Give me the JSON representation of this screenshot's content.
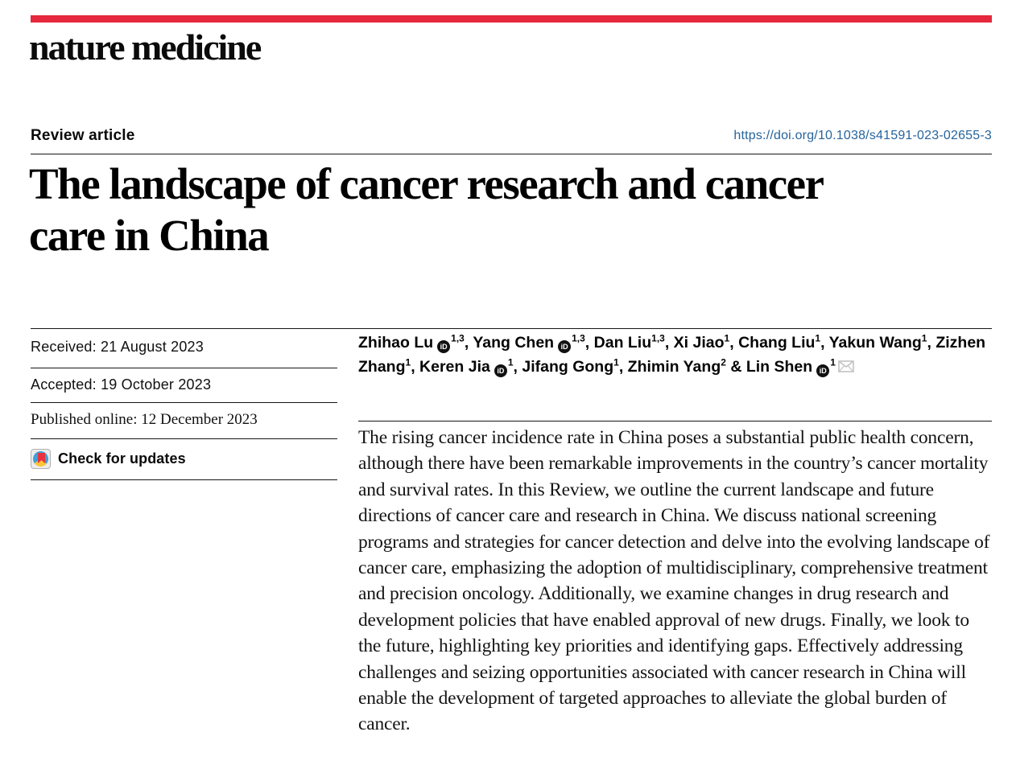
{
  "masthead": {
    "journal": "nature medicine"
  },
  "header": {
    "article_type": "Review article",
    "doi": "https://doi.org/10.1038/s41591-023-02655-3"
  },
  "title": {
    "full": "The landscape of cancer research and cancer care in China",
    "lines": [
      "The landscape of cancer research and cancer",
      "care in China"
    ]
  },
  "meta": {
    "rows": [
      {
        "label": "Received:",
        "value": "21 August 2023"
      },
      {
        "label": "Accepted:",
        "value": "19 October 2023"
      },
      {
        "label": "Published online:",
        "value": "12 December 2023"
      }
    ],
    "check_for_updates": "Check for updates"
  },
  "authors": {
    "orcid_icon_label": "iD",
    "list": [
      {
        "name": "Zhihao Lu",
        "orcid": true,
        "sup": "1,3",
        "email": false
      },
      {
        "name": "Yang Chen",
        "orcid": true,
        "sup": "1,3",
        "email": false
      },
      {
        "name": "Dan Liu",
        "orcid": false,
        "sup": "1,3",
        "email": false
      },
      {
        "name": "Xi Jiao",
        "orcid": false,
        "sup": "1",
        "email": false
      },
      {
        "name": "Chang Liu",
        "orcid": false,
        "sup": "1",
        "email": false
      },
      {
        "name": "Yakun Wang",
        "orcid": false,
        "sup": "1",
        "email": false
      },
      {
        "name": "Zizhen Zhang",
        "orcid": false,
        "sup": "1",
        "email": false
      },
      {
        "name": "Keren Jia",
        "orcid": true,
        "sup": "1",
        "email": false
      },
      {
        "name": "Jifang Gong",
        "orcid": false,
        "sup": "1",
        "email": false
      },
      {
        "name": "Zhimin Yang",
        "orcid": false,
        "sup": "2",
        "email": false
      },
      {
        "name": "Lin Shen",
        "orcid": true,
        "sup": "1",
        "email": true
      }
    ]
  },
  "abstract": {
    "text": "The rising cancer incidence rate in China poses a substantial public health concern, although there have been remarkable improvements in the country’s cancer mortality and survival rates. In this Review, we outline the current landscape and future directions of cancer care and research in China. We discuss national screening programs and strategies for cancer detection and delve into the evolving landscape of cancer care, emphasizing the adoption of multidisciplinary, comprehensive treatment and precision oncology. Additionally, we examine changes in drug research and development policies that have enabled approval of new drugs. Finally, we look to the future, highlighting key priorities and identifying gaps. Effectively addressing challenges and seizing opportunities associated with cancer research in China will enable the development of targeted approaches to alleviate the global burden of cancer."
  },
  "colors": {
    "masthead_red": "#e5283c",
    "link_blue": "#26649c"
  }
}
